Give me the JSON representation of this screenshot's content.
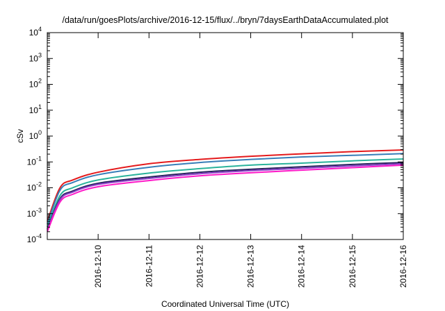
{
  "chart_data": {
    "type": "line",
    "title": "/data/run/goesPlots/archive/2016-12-15/flux/../bryn/7daysEarthDataAccumulated.plot",
    "xlabel": "Coordinated Universal Time (UTC)",
    "ylabel": "cSv",
    "x_scale": "time",
    "y_scale": "log",
    "xlim": [
      "2016-12-09T00:00",
      "2016-12-16T00:00"
    ],
    "ylim": [
      0.0001,
      10000
    ],
    "x_ticks": [
      "2016-12-10",
      "2016-12-11",
      "2016-12-12",
      "2016-12-13",
      "2016-12-14",
      "2016-12-15",
      "2016-12-16"
    ],
    "y_ticks": [
      {
        "value": 0.0001,
        "base": "10",
        "exp": "-4"
      },
      {
        "value": 0.001,
        "base": "10",
        "exp": "-3"
      },
      {
        "value": 0.01,
        "base": "10",
        "exp": "-2"
      },
      {
        "value": 0.1,
        "base": "10",
        "exp": "-1"
      },
      {
        "value": 1,
        "base": "10",
        "exp": "0"
      },
      {
        "value": 10,
        "base": "10",
        "exp": "1"
      },
      {
        "value": 100,
        "base": "10",
        "exp": "2"
      },
      {
        "value": 1000,
        "base": "10",
        "exp": "3"
      },
      {
        "value": 10000,
        "base": "10",
        "exp": "4"
      }
    ],
    "grid": false,
    "x": [
      "2016-12-09T00:00",
      "2016-12-09T06:00",
      "2016-12-09T12:00",
      "2016-12-10T00:00",
      "2016-12-11T00:00",
      "2016-12-12T00:00",
      "2016-12-13T00:00",
      "2016-12-14T00:00",
      "2016-12-15T00:00",
      "2016-12-16T00:00"
    ],
    "series": [
      {
        "color": "#e41a1c",
        "values": [
          0.0005,
          0.01,
          0.02,
          0.04,
          0.085,
          0.125,
          0.165,
          0.205,
          0.25,
          0.29
        ]
      },
      {
        "color": "#377eb8",
        "values": [
          0.0004,
          0.008,
          0.016,
          0.032,
          0.062,
          0.095,
          0.125,
          0.155,
          0.18,
          0.21
        ]
      },
      {
        "color": "#2ab39b",
        "values": [
          0.0003,
          0.005,
          0.01,
          0.02,
          0.037,
          0.055,
          0.075,
          0.09,
          0.11,
          0.13
        ]
      },
      {
        "color": "#26225c",
        "values": [
          0.00025,
          0.0038,
          0.0075,
          0.015,
          0.026,
          0.04,
          0.052,
          0.065,
          0.08,
          0.095
        ]
      },
      {
        "color": "#8b3fc7",
        "values": [
          0.00023,
          0.0034,
          0.0068,
          0.0135,
          0.023,
          0.035,
          0.046,
          0.057,
          0.07,
          0.085
        ]
      },
      {
        "color": "#ff19c8",
        "values": [
          0.0002,
          0.0028,
          0.0056,
          0.011,
          0.019,
          0.029,
          0.038,
          0.048,
          0.06,
          0.075
        ]
      }
    ]
  }
}
